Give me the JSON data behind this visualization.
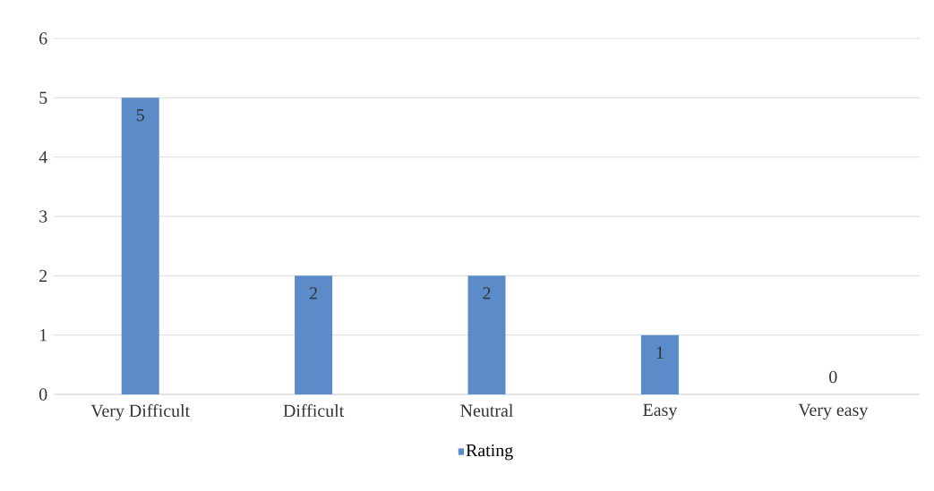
{
  "chart_data": {
    "type": "bar",
    "categories": [
      "Very Difficult",
      "Difficult",
      "Neutral",
      "Easy",
      "Very easy"
    ],
    "series": [
      {
        "name": "Rating",
        "color": "#5b8bc9",
        "values": [
          5,
          2,
          2,
          1,
          0
        ]
      }
    ],
    "ylim": [
      0,
      6
    ],
    "yticks": [
      0,
      1,
      2,
      3,
      4,
      5,
      6
    ],
    "grid": "y",
    "legend": "bottom",
    "data_labels": true
  }
}
